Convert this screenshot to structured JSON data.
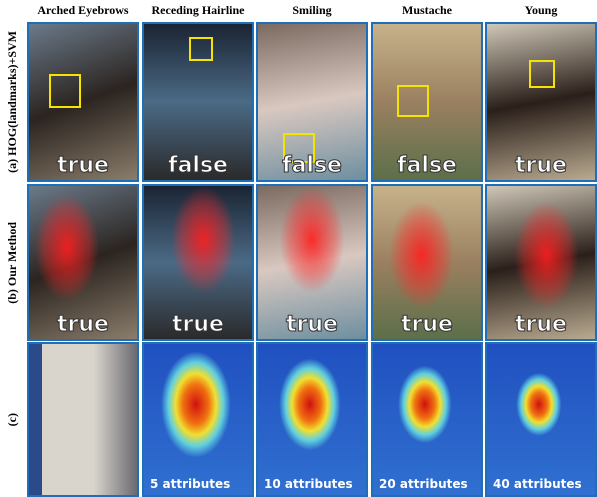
{
  "columns": [
    "Arched Eyebrows",
    "Receding Hairline",
    "Smiling",
    "Mustache",
    "Young"
  ],
  "rows": [
    {
      "label": "(a) HOG(landmarks)+SVM",
      "captions": [
        "true",
        "false",
        "false",
        "false",
        "true"
      ]
    },
    {
      "label": "(b) Our Method",
      "captions": [
        "true",
        "true",
        "true",
        "true",
        "true"
      ]
    },
    {
      "label": "(c)",
      "captions": [
        "5 attributes",
        "10 attributes",
        "20 attributes",
        "40 attributes"
      ]
    }
  ]
}
